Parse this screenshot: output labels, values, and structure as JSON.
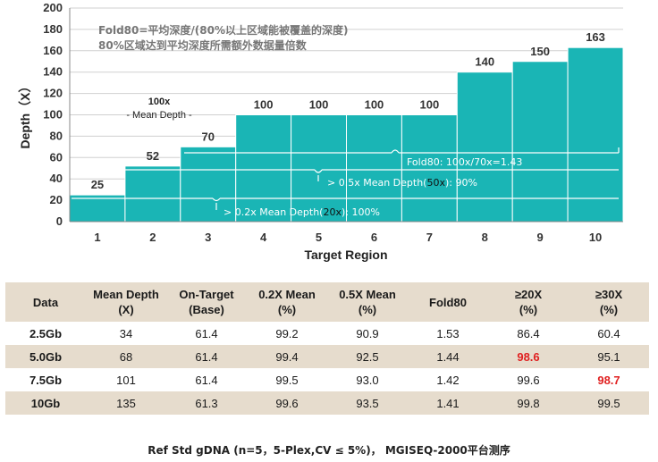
{
  "chart_data": {
    "type": "bar",
    "categories": [
      "1",
      "2",
      "3",
      "4",
      "5",
      "6",
      "7",
      "8",
      "9",
      "10"
    ],
    "values": [
      25,
      52,
      70,
      100,
      100,
      100,
      100,
      140,
      150,
      163
    ],
    "xlabel": "Target Region",
    "ylabel": "Depth（X）",
    "ylim": [
      0,
      200
    ],
    "yticks": [
      0,
      20,
      40,
      60,
      80,
      100,
      120,
      140,
      160,
      180,
      200
    ],
    "bar_color": "#1ab5b5",
    "grid": true,
    "notes": [
      "Fold80=平均深度/(80%以上区域能被覆盖的深度)",
      "80%区域达到平均深度所需额外数据量倍数"
    ],
    "mean_label": [
      "100x",
      "- Mean Depth -"
    ],
    "annotations": {
      "fold80": "Fold80: 100x/70x=1.43",
      "half_prefix": "> 0.5x Mean Depth(",
      "half_mid": "50x",
      "half_suffix": "): 90%",
      "fifth_prefix": "> 0.2x Mean Depth(",
      "fifth_mid": "20x",
      "fifth_suffix": "): 100%"
    }
  },
  "table": {
    "headers": [
      [
        "Data",
        ""
      ],
      [
        "Mean Depth",
        "(X)"
      ],
      [
        "On-Target",
        "(Base)"
      ],
      [
        "0.2X Mean",
        "(%)"
      ],
      [
        "0.5X Mean",
        "(%)"
      ],
      [
        "Fold80",
        ""
      ],
      [
        "≥20X",
        "(%)"
      ],
      [
        "≥30X",
        "(%)"
      ]
    ],
    "rows": [
      [
        "2.5Gb",
        "34",
        "61.4",
        "99.2",
        "90.9",
        "1.53",
        "86.4",
        "60.4"
      ],
      [
        "5.0Gb",
        "68",
        "61.4",
        "99.4",
        "92.5",
        "1.44",
        "98.6",
        "95.1"
      ],
      [
        "7.5Gb",
        "101",
        "61.4",
        "99.5",
        "93.0",
        "1.42",
        "99.6",
        "98.7"
      ],
      [
        "10Gb",
        "135",
        "61.3",
        "99.6",
        "93.5",
        "1.41",
        "99.8",
        "99.5"
      ]
    ],
    "highlight_color": "#e02020"
  },
  "footer": "Ref Std gDNA (n=5，5-Plex,CV ≤ 5%)， MGISEQ-2000平台测序"
}
